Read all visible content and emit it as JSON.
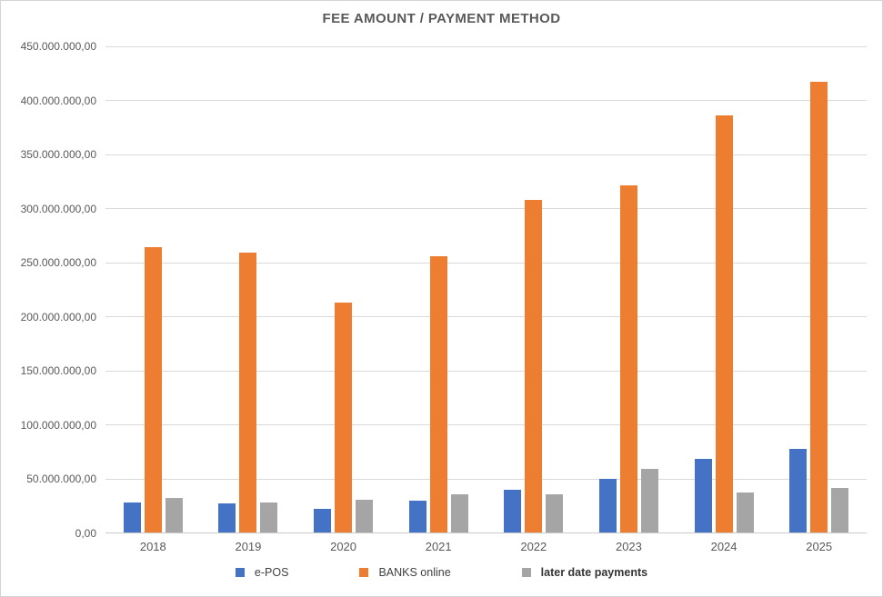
{
  "window": {
    "title": "FEE AMOUNT / PAYMENT METHOD"
  },
  "chart_data": {
    "type": "bar",
    "title": "FEE AMOUNT / PAYMENT METHOD",
    "categories": [
      "2018",
      "2019",
      "2020",
      "2021",
      "2022",
      "2023",
      "2024",
      "2025"
    ],
    "series": [
      {
        "name": "e-POS",
        "color": "#4472C4",
        "bold_legend": false,
        "values": [
          28500000,
          27500000,
          22500000,
          30000000,
          40000000,
          50000000,
          68500000,
          78000000
        ]
      },
      {
        "name": "BANKS online",
        "color": "#ED7D31",
        "bold_legend": false,
        "values": [
          264500000,
          259500000,
          213500000,
          256500000,
          308500000,
          321500000,
          386000000,
          417500000
        ]
      },
      {
        "name": "later date payments",
        "color": "#A5A5A5",
        "bold_legend": true,
        "values": [
          33000000,
          29000000,
          31000000,
          36000000,
          36500000,
          59500000,
          37500000,
          42000000
        ]
      }
    ],
    "ylim": [
      0,
      450000000
    ],
    "y_tick_step": 50000000,
    "y_tick_labels": [
      "0,00",
      "50.000.000,00",
      "100.000.000,00",
      "150.000.000,00",
      "200.000.000,00",
      "250.000.000,00",
      "300.000.000,00",
      "350.000.000,00",
      "400.000.000,00",
      "450.000.000,00"
    ],
    "xlabel": "",
    "ylabel": "",
    "grid": true,
    "legend_position": "bottom",
    "colors": {
      "title_text": "#595959",
      "axis_text": "#595959",
      "gridline": "#D9D9D9",
      "axis_line": "#C9C9C9",
      "background": "#FFFFFF",
      "border": "#D4D4D4"
    }
  }
}
